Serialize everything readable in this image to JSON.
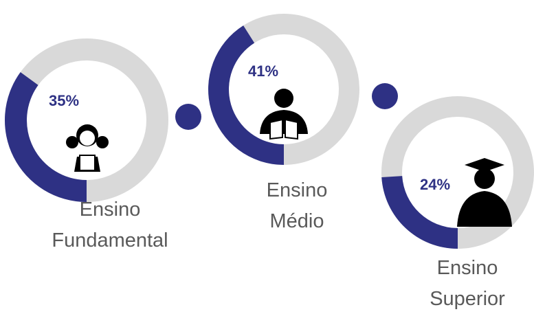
{
  "chart_data": {
    "type": "donut",
    "categories": [
      "Ensino Fundamental",
      "Ensino Médio",
      "Ensino Superior"
    ],
    "values": [
      35,
      41,
      24
    ],
    "value_labels": [
      "35%",
      "41%",
      "24%"
    ],
    "color": "#2e3184",
    "track_color": "#d9d9d9"
  }
}
